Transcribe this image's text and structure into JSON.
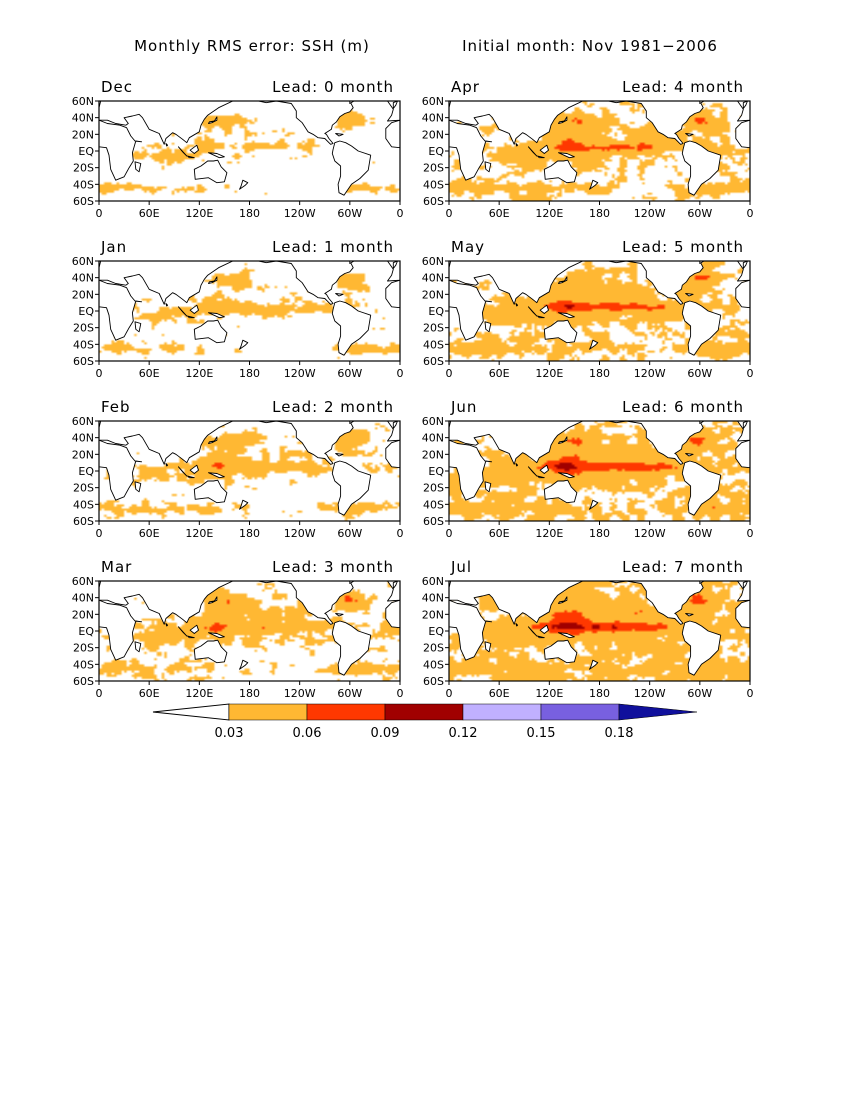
{
  "header": {
    "left_title": "Monthly RMS error: SSH (m)",
    "right_title": "Initial month: Nov 1981−2006"
  },
  "colors": {
    "orange": "#ffb833",
    "red_orange": "#ff3800",
    "dark_red": "#a00000",
    "lavender": "#c0b0ff",
    "slate_blue": "#7860e0",
    "navy": "#10109c",
    "land": "#ffffff",
    "coast": "#000000"
  },
  "chart_data": {
    "type": "heatmap",
    "variable": "Monthly RMS error: SSH (m)",
    "lat_tick_labels": [
      "60N",
      "40N",
      "20N",
      "EQ",
      "20S",
      "40S",
      "60S"
    ],
    "lon_tick_labels": [
      "0",
      "60E",
      "120E",
      "180",
      "120W",
      "60W",
      "0"
    ],
    "colorbar": {
      "tick_labels": [
        "0.03",
        "0.06",
        "0.09",
        "0.12",
        "0.15",
        "0.18"
      ],
      "bins": [
        {
          "range": "<0.03",
          "color": "#ffffff"
        },
        {
          "range": "0.03-0.06",
          "color": "#ffb833"
        },
        {
          "range": "0.06-0.09",
          "color": "#ff3800"
        },
        {
          "range": "0.09-0.12",
          "color": "#a00000"
        },
        {
          "range": "0.12-0.15",
          "color": "#c0b0ff"
        },
        {
          "range": "0.15-0.18",
          "color": "#7860e0"
        },
        {
          "range": ">0.18",
          "color": "#10109c"
        }
      ]
    },
    "panels": [
      {
        "month": "Dec",
        "lead": "Lead: 0 month",
        "n": 0
      },
      {
        "month": "Apr",
        "lead": "Lead: 4 month",
        "n": 4
      },
      {
        "month": "Jan",
        "lead": "Lead: 1 month",
        "n": 1
      },
      {
        "month": "May",
        "lead": "Lead: 5 month",
        "n": 5
      },
      {
        "month": "Feb",
        "lead": "Lead: 2 month",
        "n": 2
      },
      {
        "month": "Jun",
        "lead": "Lead: 6 month",
        "n": 6
      },
      {
        "month": "Mar",
        "lead": "Lead: 3 month",
        "n": 3
      },
      {
        "month": "Jul",
        "lead": "Lead: 7 month",
        "n": 7
      }
    ],
    "panel_8_bottom_axis_tick_labels": [
      "0",
      "60E",
      "120E",
      "180",
      "120W",
      "60W",
      "0"
    ]
  }
}
